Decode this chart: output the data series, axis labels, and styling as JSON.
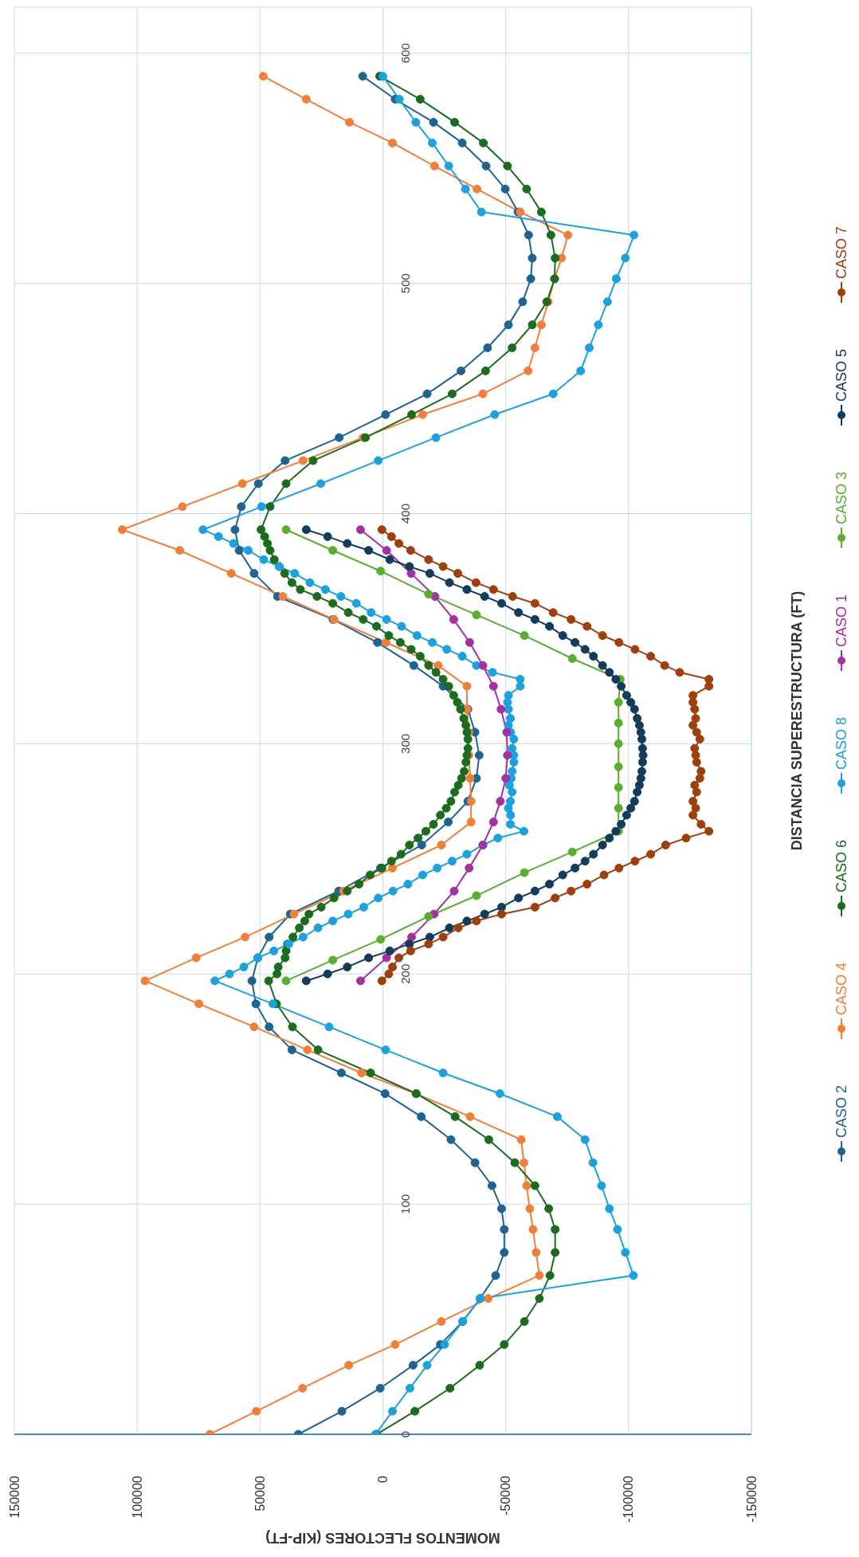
{
  "chart_data": {
    "type": "line",
    "xlabel": "MOMENTOS FLECTORES (KIP-FT)",
    "ylabel": "DISTANCIA SUPERESTRUCTURA (FT)",
    "xlim": [
      150000,
      -150000
    ],
    "xticks": [
      150000,
      100000,
      50000,
      0,
      -50000,
      -100000,
      -150000
    ],
    "ylim": [
      0,
      620
    ],
    "yticks": [
      0,
      100,
      200,
      300,
      400,
      500,
      600
    ],
    "grid": true,
    "legend": "right",
    "marker": "circle",
    "line_style": "solid",
    "series": [
      {
        "name": "CASO 2",
        "color": "#1f6391",
        "values": [
          0,
          10,
          20,
          30,
          39,
          49,
          59,
          69,
          79,
          89,
          98,
          108,
          118,
          128,
          138,
          148,
          157,
          167,
          177,
          187,
          197,
          207,
          216,
          226,
          236,
          246,
          256,
          266,
          275,
          285,
          295,
          305,
          315,
          325,
          334,
          344,
          354,
          364,
          374,
          384,
          393,
          403,
          413,
          423,
          433,
          443,
          452,
          462,
          472,
          482,
          492,
          502,
          511,
          521,
          531,
          541,
          551,
          561,
          570,
          580,
          590
        ],
        "x": [
          34400,
          16700,
          1100,
          -12300,
          -23400,
          -32500,
          -39600,
          -45900,
          -49400,
          -49400,
          -48300,
          -44400,
          -37500,
          -27700,
          -15600,
          -900,
          16900,
          37000,
          46300,
          51700,
          53300,
          50900,
          46300,
          37700,
          18000,
          1000,
          -15800,
          -26600,
          -34600,
          -38100,
          -39200,
          -37500,
          -34600,
          -24500,
          -12600,
          2200,
          20300,
          42900,
          52400,
          58500,
          60200,
          57600,
          50700,
          39800,
          17800,
          -1100,
          -18000,
          -31800,
          -42600,
          -51100,
          -56900,
          -60200,
          -60800,
          -59300,
          -55000,
          -49800,
          -42000,
          -32300,
          -20600,
          -5000,
          8200
        ]
      },
      {
        "name": "CASO 4",
        "color": "#f07f3c",
        "values": [
          0,
          10,
          20,
          30,
          39,
          49,
          59,
          69,
          79,
          89,
          98,
          108,
          118,
          128,
          138,
          148,
          157,
          167,
          177,
          187,
          197,
          207,
          216,
          226,
          236,
          246,
          256,
          266,
          275,
          285,
          295,
          305,
          315,
          325,
          334,
          344,
          354,
          364,
          374,
          384,
          393,
          403,
          413,
          423,
          433,
          443,
          452,
          462,
          472,
          482,
          492,
          502,
          511,
          521,
          531,
          541,
          551,
          561,
          570,
          580,
          590
        ],
        "x": [
          70400,
          51500,
          32700,
          13900,
          -5000,
          -23800,
          -42900,
          -63700,
          -62400,
          -61100,
          -59800,
          -58500,
          -57400,
          -56300,
          -35500,
          -13400,
          8700,
          30700,
          52400,
          74900,
          96800,
          76000,
          56100,
          36200,
          16000,
          -3900,
          -23800,
          -35900,
          -35900,
          -35500,
          -35000,
          -35000,
          -34200,
          -34200,
          -22500,
          -1300,
          19900,
          40700,
          61700,
          82700,
          106100,
          81600,
          57200,
          32500,
          8000,
          -16200,
          -40700,
          -59100,
          -61900,
          -64500,
          -67300,
          -69900,
          -72700,
          -75300,
          -55900,
          -38300,
          -21000,
          -3900,
          13600,
          31200,
          48700
        ]
      },
      {
        "name": "CASO 6",
        "color": "#1c6b1f",
        "values": [
          0,
          10,
          20,
          30,
          39,
          49,
          59,
          69,
          79,
          89,
          98,
          108,
          118,
          128,
          138,
          148,
          157,
          167,
          177,
          187,
          197,
          200,
          203,
          207,
          210,
          213,
          216,
          220,
          223,
          226,
          229,
          233,
          236,
          239,
          243,
          246,
          249,
          252,
          256,
          259,
          262,
          265,
          269,
          272,
          275,
          279,
          282,
          285,
          288,
          292,
          295,
          298,
          302,
          305,
          308,
          311,
          315,
          318,
          321,
          325,
          328,
          331,
          334,
          338,
          341,
          344,
          347,
          351,
          354,
          357,
          361,
          364,
          367,
          370,
          374,
          377,
          380,
          384,
          387,
          390,
          393,
          403,
          413,
          423,
          433,
          443,
          452,
          462,
          472,
          482,
          492,
          502,
          511,
          521,
          531,
          541,
          551,
          561,
          570,
          580,
          590
        ],
        "x": [
          2600,
          -13000,
          -27300,
          -39400,
          -49400,
          -57600,
          -63700,
          -68000,
          -70100,
          -70100,
          -67500,
          -61900,
          -53700,
          -43100,
          -29400,
          -13600,
          5000,
          26400,
          36800,
          43300,
          46500,
          43100,
          42600,
          39800,
          39400,
          38800,
          36600,
          34000,
          31800,
          30100,
          25100,
          19900,
          14500,
          9700,
          5200,
          400,
          -3500,
          -7400,
          -10800,
          -14300,
          -17500,
          -20600,
          -23400,
          -25800,
          -27700,
          -29200,
          -30700,
          -32000,
          -33100,
          -33800,
          -34200,
          -34600,
          -34600,
          -34200,
          -33800,
          -32900,
          -31600,
          -30300,
          -28800,
          -26800,
          -24500,
          -21600,
          -18600,
          -15200,
          -11500,
          -7100,
          -2400,
          2600,
          8000,
          14100,
          20400,
          26800,
          33600,
          37000,
          40000,
          42200,
          44200,
          45900,
          47000,
          48100,
          49600,
          45900,
          39400,
          28400,
          7100,
          -11700,
          -28200,
          -41800,
          -52600,
          -60800,
          -66700,
          -69900,
          -70100,
          -68400,
          -64500,
          -58500,
          -50700,
          -40900,
          -29200,
          -15200,
          1300
        ]
      },
      {
        "name": "CASO 8",
        "color": "#1da1dc",
        "values": [
          0,
          10,
          20,
          30,
          39,
          49,
          59,
          69,
          79,
          89,
          98,
          108,
          118,
          128,
          138,
          148,
          157,
          167,
          177,
          187,
          197,
          200,
          203,
          207,
          210,
          213,
          216,
          220,
          223,
          226,
          229,
          233,
          236,
          239,
          243,
          246,
          249,
          252,
          256,
          259,
          262,
          265,
          269,
          272,
          275,
          279,
          282,
          285,
          288,
          292,
          295,
          298,
          302,
          305,
          308,
          311,
          315,
          318,
          321,
          325,
          328,
          331,
          334,
          338,
          341,
          344,
          347,
          351,
          354,
          357,
          361,
          364,
          367,
          370,
          374,
          377,
          380,
          384,
          387,
          390,
          393,
          403,
          413,
          423,
          433,
          443,
          452,
          462,
          472,
          482,
          492,
          502,
          511,
          521,
          531,
          541,
          551,
          561,
          570,
          580,
          590
        ],
        "x": [
          3000,
          -3900,
          -11000,
          -18000,
          -25100,
          -32500,
          -39600,
          -102000,
          -98700,
          -95500,
          -92200,
          -89000,
          -85500,
          -82300,
          -71000,
          -47600,
          -24500,
          -1100,
          21900,
          44800,
          68400,
          62400,
          56600,
          50900,
          44400,
          38300,
          32500,
          26400,
          20400,
          14100,
          7800,
          1900,
          -4100,
          -10200,
          -16200,
          -22100,
          -28200,
          -34200,
          -40700,
          -46800,
          -57400,
          -51900,
          -52000,
          -51100,
          -51900,
          -52600,
          -51500,
          -52200,
          -52600,
          -53300,
          -53300,
          -52600,
          -53300,
          -52000,
          -51100,
          -51900,
          -51100,
          -50700,
          -51100,
          -55900,
          -55900,
          -44600,
          -38100,
          -32300,
          -26000,
          -20100,
          -13900,
          -7600,
          -1500,
          4800,
          10800,
          17100,
          23400,
          29700,
          35900,
          42200,
          48500,
          54800,
          60800,
          66900,
          73200,
          49400,
          25300,
          1900,
          -21600,
          -45500,
          -69300,
          -80500,
          -84000,
          -87700,
          -91400,
          -95000,
          -98700,
          -102200,
          -40100,
          -33600,
          -26800,
          -20100,
          -13400,
          -6700,
          0
        ]
      },
      {
        "name": "CASO 1",
        "color": "#a3319f",
        "values": [
          197,
          207,
          216,
          226,
          236,
          246,
          256,
          266,
          275,
          285,
          295,
          305,
          315,
          325,
          334,
          344,
          354,
          364,
          374,
          384,
          393
        ],
        "x": [
          9100,
          -1500,
          -11700,
          -20800,
          -29000,
          -35100,
          -40700,
          -45000,
          -47800,
          -50000,
          -50700,
          -50400,
          -48100,
          -45000,
          -40700,
          -35300,
          -28800,
          -21200,
          -11500,
          -1500,
          9100
        ]
      },
      {
        "name": "CASO 3",
        "color": "#5bad2f",
        "values": [
          197,
          206,
          215,
          225,
          234,
          244,
          253,
          262,
          272,
          281,
          290,
          300,
          309,
          318,
          328,
          337,
          347,
          356,
          365,
          375,
          384,
          393
        ],
        "x": [
          39400,
          20400,
          900,
          -18600,
          -38100,
          -57600,
          -77100,
          -95900,
          -95900,
          -95900,
          -95900,
          -95900,
          -95900,
          -95900,
          -96600,
          -77100,
          -57600,
          -38100,
          -18600,
          900,
          20400,
          39400
        ]
      },
      {
        "name": "CASO 5",
        "color": "#133c5a",
        "values": [
          197,
          200,
          203,
          207,
          210,
          213,
          216,
          220,
          223,
          226,
          229,
          233,
          236,
          239,
          243,
          246,
          249,
          252,
          256,
          259,
          262,
          265,
          269,
          272,
          275,
          279,
          282,
          285,
          288,
          292,
          295,
          298,
          302,
          305,
          308,
          311,
          315,
          318,
          321,
          325,
          328,
          331,
          334,
          338,
          341,
          344,
          347,
          351,
          354,
          357,
          361,
          364,
          367,
          370,
          374,
          377,
          380,
          384,
          387,
          390,
          393
        ],
        "x": [
          31200,
          22500,
          14500,
          5800,
          -2800,
          -10800,
          -19100,
          -27100,
          -34200,
          -41400,
          -48300,
          -55200,
          -61900,
          -67800,
          -73200,
          -78200,
          -82300,
          -85700,
          -89400,
          -92200,
          -94800,
          -97000,
          -99200,
          -100900,
          -102400,
          -103500,
          -104400,
          -105000,
          -105400,
          -105700,
          -105900,
          -105700,
          -105400,
          -105000,
          -104400,
          -103500,
          -102400,
          -100900,
          -99200,
          -97000,
          -94800,
          -92200,
          -89400,
          -85700,
          -82300,
          -78200,
          -73200,
          -67800,
          -61900,
          -55200,
          -48300,
          -41400,
          -34200,
          -27100,
          -19100,
          -10800,
          -2800,
          5800,
          14500,
          22500,
          31200
        ]
      },
      {
        "name": "CASO 7",
        "color": "#9e3f0d",
        "values": [
          197,
          200,
          203,
          207,
          210,
          213,
          216,
          220,
          223,
          226,
          229,
          233,
          236,
          239,
          243,
          246,
          249,
          252,
          256,
          259,
          262,
          265,
          269,
          272,
          275,
          279,
          282,
          285,
          288,
          292,
          295,
          298,
          302,
          305,
          308,
          311,
          315,
          318,
          321,
          325,
          328,
          331,
          334,
          338,
          341,
          344,
          347,
          351,
          354,
          357,
          361,
          364,
          367,
          370,
          374,
          377,
          380,
          384,
          387,
          390,
          393
        ],
        "x": [
          400,
          -2400,
          -3900,
          -6500,
          -11300,
          -18600,
          -24500,
          -30700,
          -38100,
          -48300,
          -61900,
          -70100,
          -76600,
          -83100,
          -90000,
          -96100,
          -102600,
          -109000,
          -115100,
          -123400,
          -132700,
          -129500,
          -126200,
          -127300,
          -126200,
          -127700,
          -126900,
          -129000,
          -129500,
          -127700,
          -127300,
          -126900,
          -129000,
          -127700,
          -126200,
          -127300,
          -126900,
          -126200,
          -126200,
          -132700,
          -132700,
          -120800,
          -114700,
          -109000,
          -102600,
          -96100,
          -89400,
          -83100,
          -76600,
          -69300,
          -61900,
          -52800,
          -45000,
          -37900,
          -30500,
          -24500,
          -18600,
          -11300,
          -6500,
          -3500,
          400
        ]
      }
    ]
  }
}
